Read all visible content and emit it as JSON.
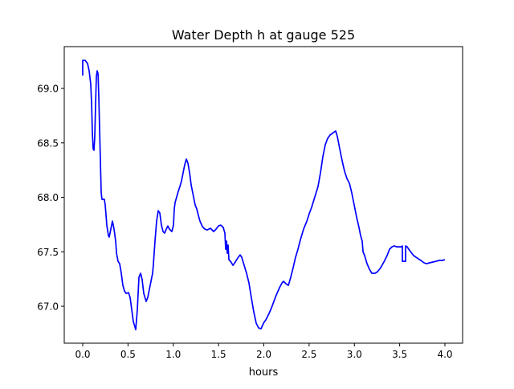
{
  "chart_data": {
    "type": "line",
    "title": "Water Depth h at gauge 525",
    "xlabel": "hours",
    "ylabel": "",
    "xlim": [
      -0.204,
      4.195
    ],
    "ylim": [
      66.661,
      69.384
    ],
    "xticks": [
      0.0,
      0.5,
      1.0,
      1.5,
      2.0,
      2.5,
      3.0,
      3.5,
      4.0
    ],
    "xtick_labels": [
      "0.0",
      "0.5",
      "1.0",
      "1.5",
      "2.0",
      "2.5",
      "3.0",
      "3.5",
      "4.0"
    ],
    "yticks": [
      67.0,
      67.5,
      68.0,
      68.5,
      69.0
    ],
    "ytick_labels": [
      "67.0",
      "67.5",
      "68.0",
      "68.5",
      "69.0"
    ],
    "grid": false,
    "series": [
      {
        "name": "h",
        "color": "#0000ff",
        "x": [
          0.0,
          0.0,
          0.027,
          0.053,
          0.071,
          0.089,
          0.098,
          0.106,
          0.115,
          0.124,
          0.133,
          0.142,
          0.151,
          0.16,
          0.169,
          0.177,
          0.186,
          0.195,
          0.204,
          0.213,
          0.239,
          0.248,
          0.266,
          0.284,
          0.293,
          0.31,
          0.328,
          0.346,
          0.364,
          0.373,
          0.39,
          0.408,
          0.426,
          0.443,
          0.461,
          0.479,
          0.506,
          0.523,
          0.541,
          0.559,
          0.585,
          0.603,
          0.621,
          0.639,
          0.656,
          0.674,
          0.701,
          0.718,
          0.754,
          0.772,
          0.78,
          0.798,
          0.816,
          0.834,
          0.851,
          0.869,
          0.887,
          0.905,
          0.922,
          0.94,
          0.958,
          0.984,
          1.002,
          1.011,
          1.02,
          1.038,
          1.055,
          1.073,
          1.091,
          1.109,
          1.126,
          1.144,
          1.162,
          1.18,
          1.197,
          1.215,
          1.242,
          1.259,
          1.277,
          1.295,
          1.322,
          1.348,
          1.375,
          1.41,
          1.446,
          1.472,
          1.499,
          1.525,
          1.552,
          1.57,
          1.579,
          1.588,
          1.596,
          1.605,
          1.614,
          1.632,
          1.659,
          1.685,
          1.712,
          1.738,
          1.756,
          1.783,
          1.809,
          1.836,
          1.862,
          1.889,
          1.916,
          1.942,
          1.969,
          1.996,
          2.022,
          2.058,
          2.084,
          2.111,
          2.137,
          2.173,
          2.2,
          2.217,
          2.244,
          2.271,
          2.297,
          2.324,
          2.35,
          2.377,
          2.404,
          2.439,
          2.475,
          2.501,
          2.528,
          2.563,
          2.599,
          2.625,
          2.652,
          2.678,
          2.705,
          2.732,
          2.767,
          2.794,
          2.812,
          2.838,
          2.865,
          2.891,
          2.918,
          2.945,
          2.971,
          2.998,
          3.024,
          3.051,
          3.069,
          3.086,
          3.095,
          3.113,
          3.14,
          3.166,
          3.193,
          3.228,
          3.255,
          3.29,
          3.326,
          3.361,
          3.388,
          3.415,
          3.441,
          3.468,
          3.486,
          3.521,
          3.53,
          3.53,
          3.565,
          3.565,
          3.583,
          3.601,
          3.627,
          3.654,
          3.681,
          3.707,
          3.734,
          3.769,
          3.796,
          3.831,
          3.867,
          3.902,
          3.938,
          3.973,
          4.0
        ],
        "y": [
          69.118,
          69.258,
          69.258,
          69.229,
          69.162,
          69.037,
          68.852,
          68.594,
          68.446,
          68.432,
          68.557,
          68.852,
          69.111,
          69.162,
          69.133,
          68.926,
          68.631,
          68.336,
          68.041,
          67.982,
          67.982,
          67.93,
          67.745,
          67.649,
          67.635,
          67.708,
          67.782,
          67.708,
          67.598,
          67.487,
          67.413,
          67.391,
          67.303,
          67.192,
          67.14,
          67.118,
          67.125,
          67.081,
          66.97,
          66.86,
          66.786,
          66.97,
          67.266,
          67.303,
          67.244,
          67.118,
          67.044,
          67.081,
          67.229,
          67.303,
          67.376,
          67.598,
          67.782,
          67.878,
          67.856,
          67.745,
          67.686,
          67.672,
          67.708,
          67.738,
          67.708,
          67.686,
          67.745,
          67.893,
          67.952,
          68.004,
          68.055,
          68.1,
          68.151,
          68.225,
          68.299,
          68.351,
          68.314,
          68.225,
          68.114,
          68.041,
          67.93,
          67.893,
          67.834,
          67.782,
          67.731,
          67.708,
          67.701,
          67.716,
          67.686,
          67.708,
          67.738,
          67.745,
          67.723,
          67.672,
          67.524,
          67.598,
          67.487,
          67.561,
          67.428,
          67.413,
          67.376,
          67.406,
          67.443,
          67.472,
          67.45,
          67.376,
          67.303,
          67.214,
          67.081,
          66.948,
          66.845,
          66.801,
          66.793,
          66.845,
          66.875,
          66.934,
          66.985,
          67.044,
          67.103,
          67.17,
          67.214,
          67.229,
          67.207,
          67.192,
          67.266,
          67.354,
          67.45,
          67.524,
          67.613,
          67.708,
          67.782,
          67.849,
          67.908,
          68.004,
          68.1,
          68.225,
          68.373,
          68.483,
          68.542,
          68.572,
          68.594,
          68.609,
          68.557,
          68.446,
          68.336,
          68.24,
          68.173,
          68.129,
          68.041,
          67.93,
          67.819,
          67.723,
          67.649,
          67.598,
          67.502,
          67.465,
          67.391,
          67.339,
          67.303,
          67.303,
          67.317,
          67.354,
          67.406,
          67.465,
          67.524,
          67.546,
          67.554,
          67.546,
          67.546,
          67.546,
          67.554,
          67.413,
          67.413,
          67.554,
          67.546,
          67.524,
          67.494,
          67.465,
          67.45,
          67.435,
          67.421,
          67.399,
          67.391,
          67.399,
          67.406,
          67.413,
          67.421,
          67.421,
          67.428
        ]
      }
    ]
  }
}
